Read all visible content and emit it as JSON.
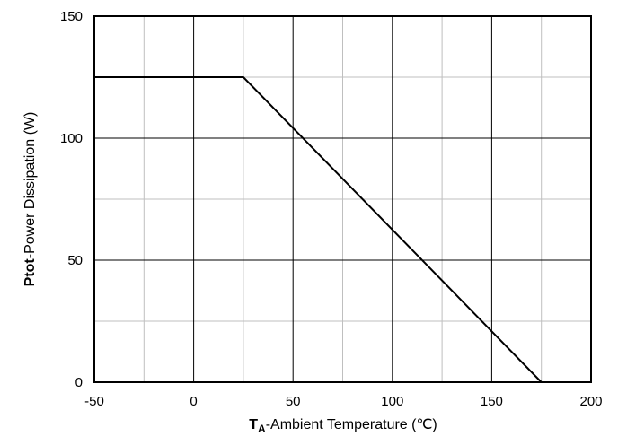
{
  "chart_data": {
    "type": "line",
    "x_label": {
      "symbol": "T",
      "subscript": "A",
      "text": "-Ambient Temperature (℃)"
    },
    "y_label": {
      "symbol": "Ptot",
      "text": "-Power Dissipation (W)"
    },
    "x": [
      -50,
      25,
      175
    ],
    "series": [
      {
        "color": "#000000",
        "values": [
          125,
          125,
          0
        ]
      }
    ],
    "xlim": [
      -50,
      200
    ],
    "xticks": [
      -50,
      0,
      50,
      100,
      150,
      200
    ],
    "x_minor_ticks": [
      -25,
      25,
      75,
      125,
      175
    ],
    "ylim": [
      0,
      150
    ],
    "yticks": [
      0,
      50,
      100,
      150
    ],
    "y_minor_ticks": [
      25,
      75,
      125
    ],
    "grid": true
  }
}
